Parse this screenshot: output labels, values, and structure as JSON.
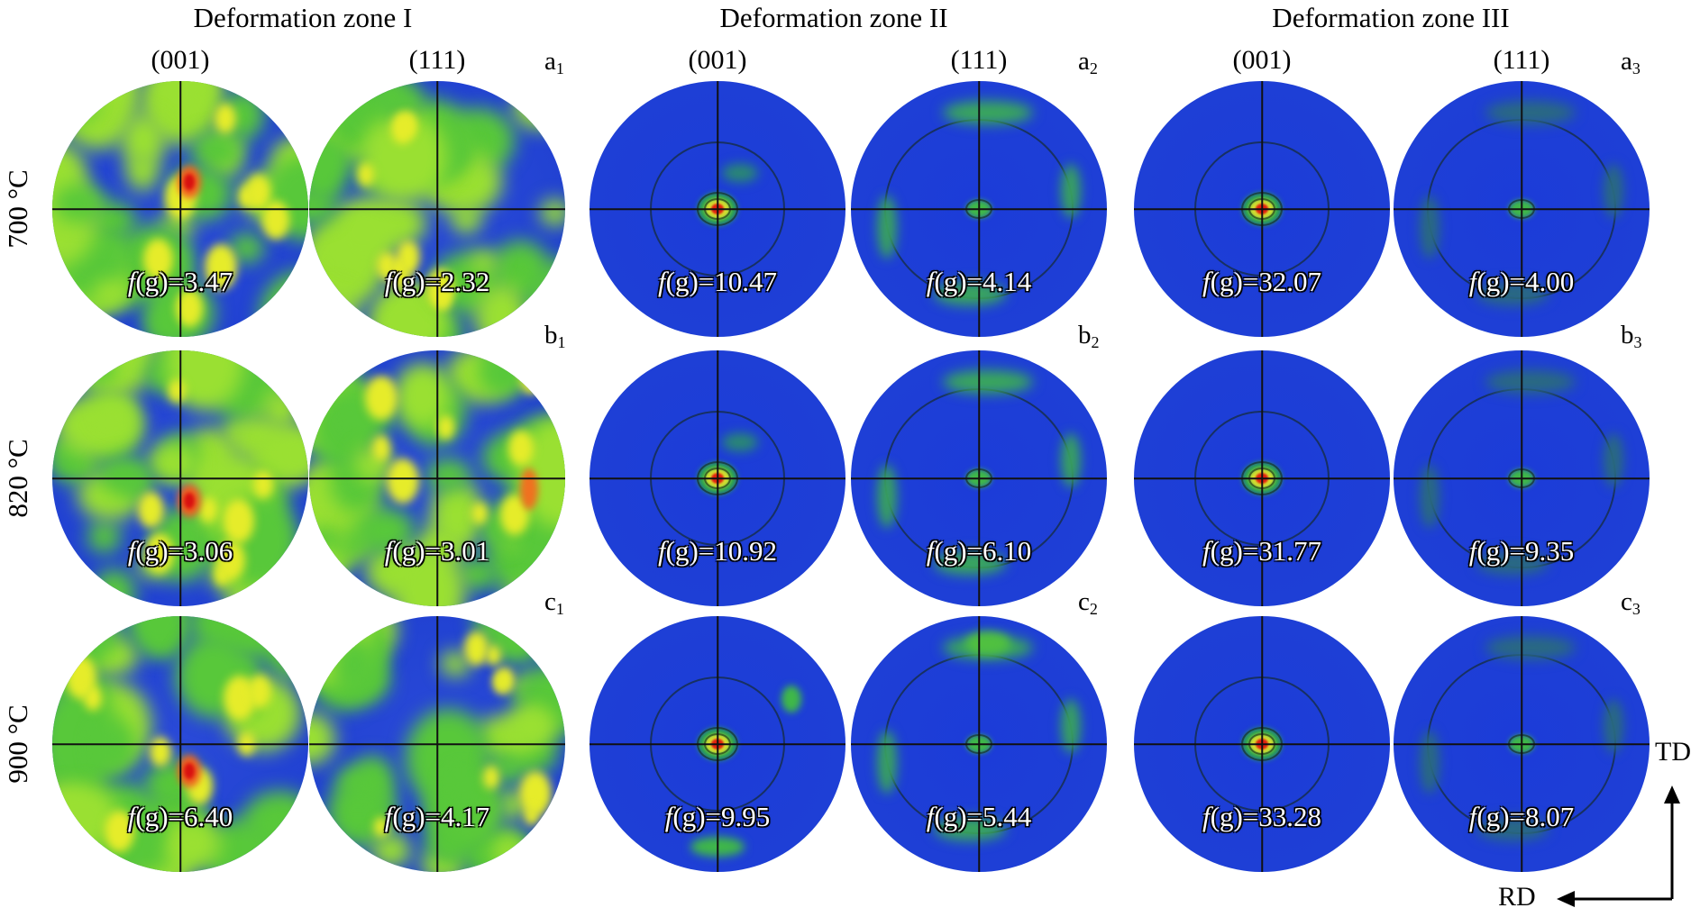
{
  "zones": [
    "Deformation zone I",
    "Deformation zone II",
    "Deformation zone III"
  ],
  "planes": [
    "(001)",
    "(111)"
  ],
  "temperatures": [
    "700 °C",
    "820 °C",
    "900 °C"
  ],
  "panel_letters": [
    {
      "letter": "a",
      "sub": "1"
    },
    {
      "letter": "a",
      "sub": "2"
    },
    {
      "letter": "a",
      "sub": "3"
    },
    {
      "letter": "b",
      "sub": "1"
    },
    {
      "letter": "b",
      "sub": "2"
    },
    {
      "letter": "b",
      "sub": "3"
    },
    {
      "letter": "c",
      "sub": "1"
    },
    {
      "letter": "c",
      "sub": "2"
    },
    {
      "letter": "c",
      "sub": "3"
    }
  ],
  "f_prefix": "f",
  "f_suffix": "(g)=",
  "max_intensity": [
    [
      "3.47",
      "2.32",
      "10.47",
      "4.14",
      "32.07",
      "4.00"
    ],
    [
      "3.06",
      "3.01",
      "10.92",
      "6.10",
      "31.77",
      "9.35"
    ],
    [
      "6.40",
      "4.17",
      "9.95",
      "5.44",
      "33.28",
      "8.07"
    ]
  ],
  "axes": {
    "td": "TD",
    "rd": "RD"
  },
  "colors": {
    "background": "#1f2fd8",
    "low": "#1133dd",
    "mid": "#3fbf3f",
    "high": "#e8e820",
    "peak": "#dd2020"
  }
}
